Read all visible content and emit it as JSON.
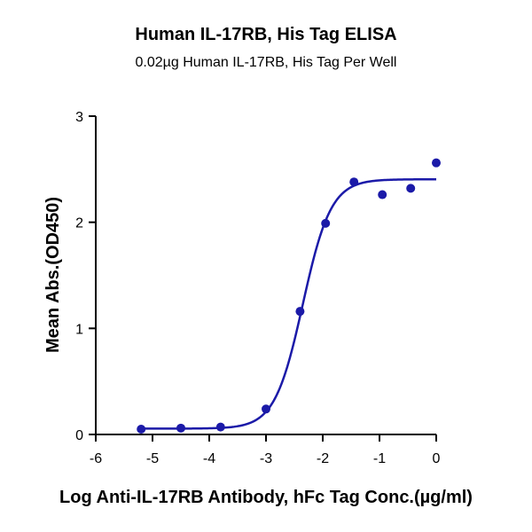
{
  "chart_data": {
    "type": "scatter",
    "title": "Human IL-17RB, His Tag ELISA",
    "subtitle": "0.02µg Human IL-17RB, His Tag Per Well",
    "xlabel": "Log Anti-IL-17RB Antibody, hFc Tag Conc.(µg/ml)",
    "ylabel": "Mean Abs.(OD450)",
    "xlim": [
      -6,
      0
    ],
    "ylim": [
      0,
      3
    ],
    "x_ticks": [
      -6,
      -5,
      -4,
      -3,
      -2,
      -1,
      0
    ],
    "y_ticks": [
      0,
      1,
      2,
      3
    ],
    "x_tick_labels": [
      "-6",
      "-5",
      "-4",
      "-3",
      "-2",
      "-1",
      "0"
    ],
    "y_tick_labels": [
      "0",
      "1",
      "2",
      "3"
    ],
    "grid": false,
    "legend": "none",
    "series": [
      {
        "points": [
          {
            "x": -5.2,
            "y": 0.05
          },
          {
            "x": -4.5,
            "y": 0.06
          },
          {
            "x": -3.8,
            "y": 0.07
          },
          {
            "x": -3.0,
            "y": 0.24
          },
          {
            "x": -2.4,
            "y": 1.16
          },
          {
            "x": -1.95,
            "y": 1.99
          },
          {
            "x": -1.45,
            "y": 2.38
          },
          {
            "x": -0.95,
            "y": 2.26
          },
          {
            "x": -0.45,
            "y": 2.32
          },
          {
            "x": 0.0,
            "y": 2.56
          }
        ],
        "fit": {
          "model": "4PL",
          "bottom": 0.055,
          "top": 2.405,
          "logEC50": -2.35,
          "hillslope": 1.75,
          "x_range": [
            -5.2,
            0.0
          ]
        }
      }
    ],
    "colors": {
      "series": "#1b1aa8",
      "axis": "#000000"
    }
  }
}
